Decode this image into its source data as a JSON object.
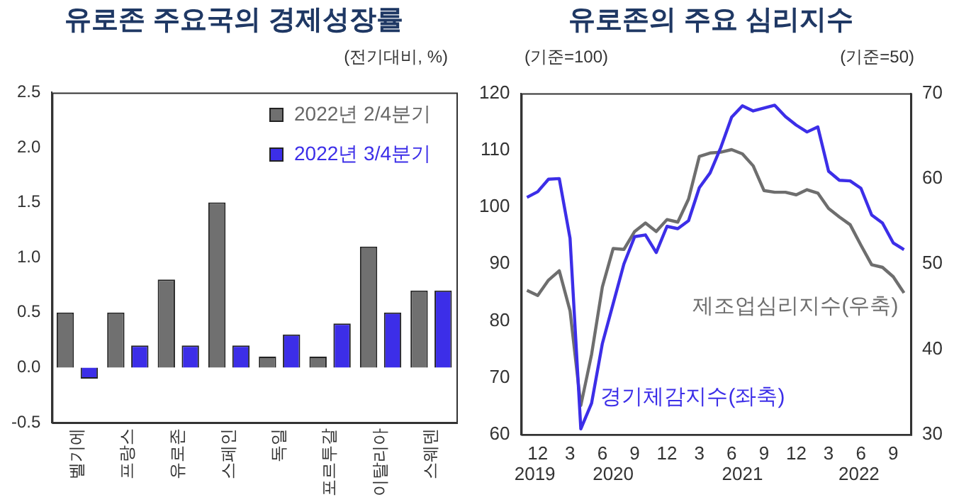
{
  "chart_data": [
    {
      "type": "bar",
      "title": "유로존 주요국의 경제성장률",
      "ylabel": "(전기대비, %)",
      "categories": [
        "벨기에",
        "프랑스",
        "유로존",
        "스페인",
        "독일",
        "포르투갈",
        "이탈리아",
        "스웨덴"
      ],
      "series": [
        {
          "name": "2022년 2/4분기",
          "color": "#707070",
          "values": [
            0.5,
            0.5,
            0.8,
            1.5,
            0.1,
            0.1,
            1.1,
            0.7
          ]
        },
        {
          "name": "2022년 3/4분기",
          "color": "#3c2ee8",
          "values": [
            -0.1,
            0.2,
            0.2,
            0.2,
            0.3,
            0.4,
            0.5,
            0.7
          ]
        }
      ],
      "ylim": [
        -0.5,
        2.5
      ],
      "yticks": [
        -0.5,
        {
          "value": 0,
          "label": "0.0"
        },
        0.5,
        {
          "value": 1,
          "label": "1.0"
        },
        1.5,
        {
          "value": 2,
          "label": "2.0"
        },
        2.5
      ],
      "grid": false,
      "legend": "top right"
    },
    {
      "type": "line",
      "title": "유로존의 주요 심리지수",
      "ylabel": "(기준=100)",
      "y2label": "(기준=50)",
      "x": [
        "2019-11",
        "2019-12",
        "2020-01",
        "2020-02",
        "2020-03",
        "2020-04",
        "2020-05",
        "2020-06",
        "2020-07",
        "2020-08",
        "2020-09",
        "2020-10",
        "2020-11",
        "2020-12",
        "2021-01",
        "2021-02",
        "2021-03",
        "2021-04",
        "2021-05",
        "2021-06",
        "2021-07",
        "2021-08",
        "2021-09",
        "2021-10",
        "2021-11",
        "2021-12",
        "2022-01",
        "2022-02",
        "2022-03",
        "2022-04",
        "2022-05",
        "2022-06",
        "2022-07",
        "2022-08",
        "2022-09",
        "2022-10"
      ],
      "series": [
        {
          "name": "경기체감지수(좌축)",
          "color": "#3c2ee8",
          "values": [
            101.7,
            102.7,
            104.9,
            105.0,
            94.5,
            61.0,
            65.5,
            76.0,
            83.0,
            90.0,
            94.8,
            95.1,
            92.0,
            96.6,
            96.2,
            97.6,
            103.4,
            106.0,
            110.5,
            115.8,
            117.8,
            116.9,
            117.4,
            117.9,
            115.9,
            114.4,
            113.2,
            114.1,
            106.3,
            104.7,
            104.6,
            103.3,
            98.6,
            97.2,
            93.7,
            92.5
          ]
        },
        {
          "name": "제조업심리지수(우축)",
          "color": "#6e6e6e",
          "axis": "y2",
          "values": [
            46.9,
            46.3,
            48.1,
            49.2,
            44.5,
            33.4,
            39.4,
            47.3,
            51.8,
            51.7,
            53.8,
            54.8,
            53.8,
            55.2,
            54.9,
            57.6,
            62.6,
            63.0,
            63.1,
            63.4,
            62.9,
            61.5,
            58.6,
            58.4,
            58.4,
            58.1,
            58.7,
            58.3,
            56.5,
            55.5,
            54.6,
            52.2,
            49.9,
            49.6,
            48.5,
            46.6
          ]
        }
      ],
      "xlim": [
        "2019-10-15",
        "2022-10-20"
      ],
      "xticks": [
        {
          "value": "2019-12",
          "label": "12"
        },
        {
          "value": "2020-03",
          "label": "3"
        },
        {
          "value": "2020-06",
          "label": "6"
        },
        {
          "value": "2020-09",
          "label": "9"
        },
        {
          "value": "2020-12",
          "label": "12"
        },
        {
          "value": "2021-03",
          "label": "3"
        },
        {
          "value": "2021-06",
          "label": "6"
        },
        {
          "value": "2021-09",
          "label": "9"
        },
        {
          "value": "2021-12",
          "label": "12"
        },
        {
          "value": "2022-03",
          "label": "3"
        },
        {
          "value": "2022-06",
          "label": "6"
        },
        {
          "value": "2022-09",
          "label": "9"
        }
      ],
      "ylim": [
        60,
        120
      ],
      "yticks": [
        60,
        70,
        80,
        90,
        100,
        110,
        120
      ],
      "y2lim": [
        30,
        70
      ],
      "y2ticks": [
        30,
        40,
        50,
        60,
        70
      ],
      "annotations": [
        "2019",
        "2020",
        "2021",
        "2022"
      ],
      "grid": false,
      "legend": false,
      "marker": "none",
      "line_style": "solid"
    }
  ]
}
